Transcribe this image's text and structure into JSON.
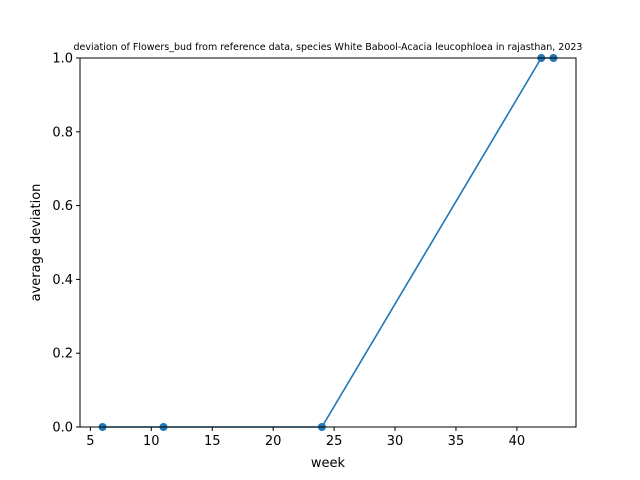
{
  "chart_data": {
    "type": "line",
    "title": "deviation of Flowers_bud from reference data, species White Babool-Acacia leucophloea in rajasthan, 2023",
    "xlabel": "week",
    "ylabel": "average deviation",
    "xlim": [
      4.15,
      44.85
    ],
    "ylim": [
      0.0,
      1.0
    ],
    "xticks": [
      5,
      10,
      15,
      20,
      25,
      30,
      35,
      40
    ],
    "yticks": [
      0.0,
      0.2,
      0.4,
      0.6,
      0.8,
      1.0
    ],
    "xtick_labels": [
      "5",
      "10",
      "15",
      "20",
      "25",
      "30",
      "35",
      "40"
    ],
    "ytick_labels": [
      "0.0",
      "0.2",
      "0.4",
      "0.6",
      "0.8",
      "1.0"
    ],
    "grid": false,
    "series": [
      {
        "color": "#1f77b4",
        "markers": true,
        "x": [
          6,
          11,
          24,
          42,
          43
        ],
        "y": [
          0.0,
          0.0,
          0.0,
          1.0,
          1.0
        ]
      }
    ]
  }
}
